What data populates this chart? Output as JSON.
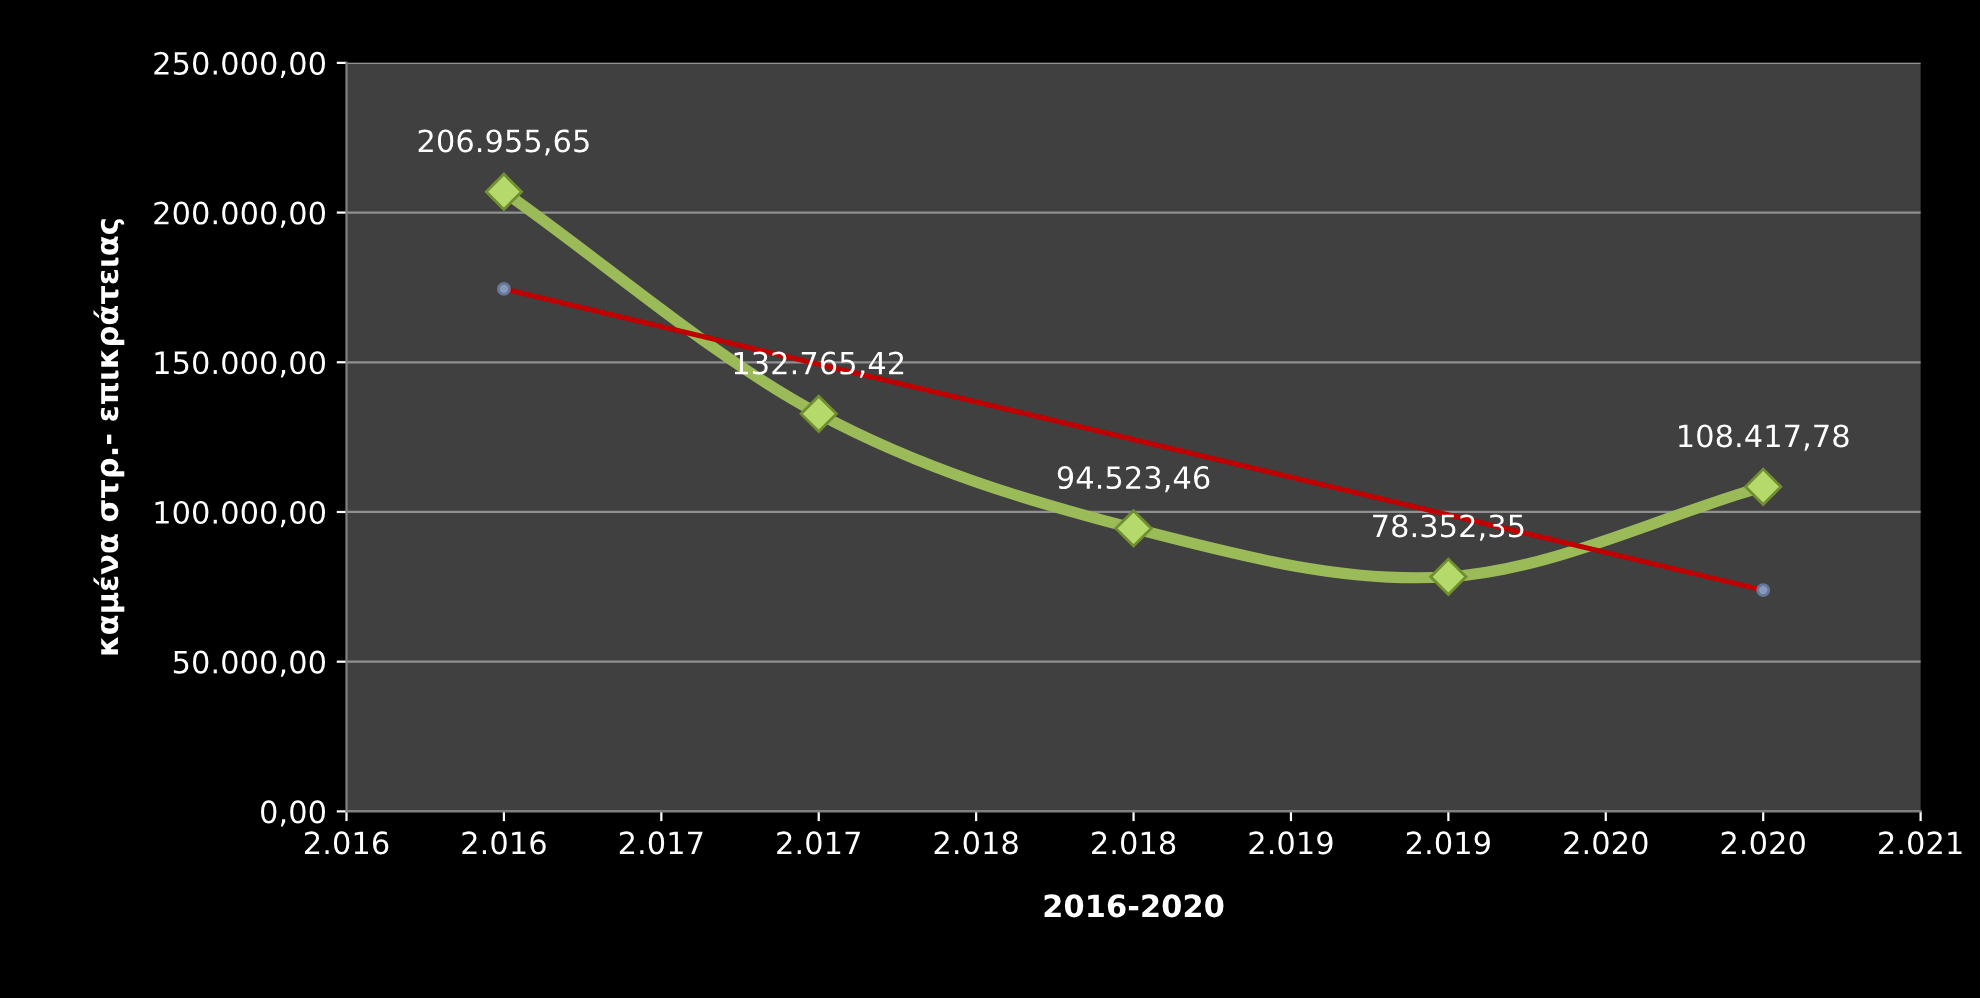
{
  "chart_data": {
    "type": "line",
    "xlabel": "2016-2020",
    "ylabel": "καμένα στρ.- επικράτειας",
    "x": [
      2016,
      2017,
      2018,
      2019,
      2020
    ],
    "series": [
      {
        "color": "#9bbb59",
        "marker": "diamond",
        "data_labels": true,
        "values": [
          206955.65,
          132765.42,
          94523.46,
          78352.35,
          108417.78
        ],
        "value_labels": [
          "206.955,65",
          "132.765,42",
          "94.523,46",
          "78.352,35",
          "108.417,78"
        ]
      },
      {
        "color": "#c00000",
        "marker": "circle",
        "x": [
          2016,
          2020
        ],
        "values": [
          174500,
          73900
        ]
      }
    ],
    "xlim": [
      2015.5,
      2020.5
    ],
    "xticks": [
      {
        "value": 2015.5,
        "label": "2.016"
      },
      {
        "value": 2016,
        "label": "2.016"
      },
      {
        "value": 2016.5,
        "label": "2.017"
      },
      {
        "value": 2017,
        "label": "2.017"
      },
      {
        "value": 2017.5,
        "label": "2.018"
      },
      {
        "value": 2018,
        "label": "2.018"
      },
      {
        "value": 2018.5,
        "label": "2.019"
      },
      {
        "value": 2019,
        "label": "2.019"
      },
      {
        "value": 2019.5,
        "label": "2.020"
      },
      {
        "value": 2020,
        "label": "2.020"
      },
      {
        "value": 2020.5,
        "label": "2.021"
      }
    ],
    "ylim": [
      0,
      250000
    ],
    "yticks": [
      {
        "value": 0,
        "label": "0,00"
      },
      {
        "value": 50000,
        "label": "50.000,00"
      },
      {
        "value": 100000,
        "label": "100.000,00"
      },
      {
        "value": 150000,
        "label": "150.000,00"
      },
      {
        "value": 200000,
        "label": "200.000,00"
      },
      {
        "value": 250000,
        "label": "250.000,00"
      }
    ],
    "grid": "y",
    "legend": false
  }
}
